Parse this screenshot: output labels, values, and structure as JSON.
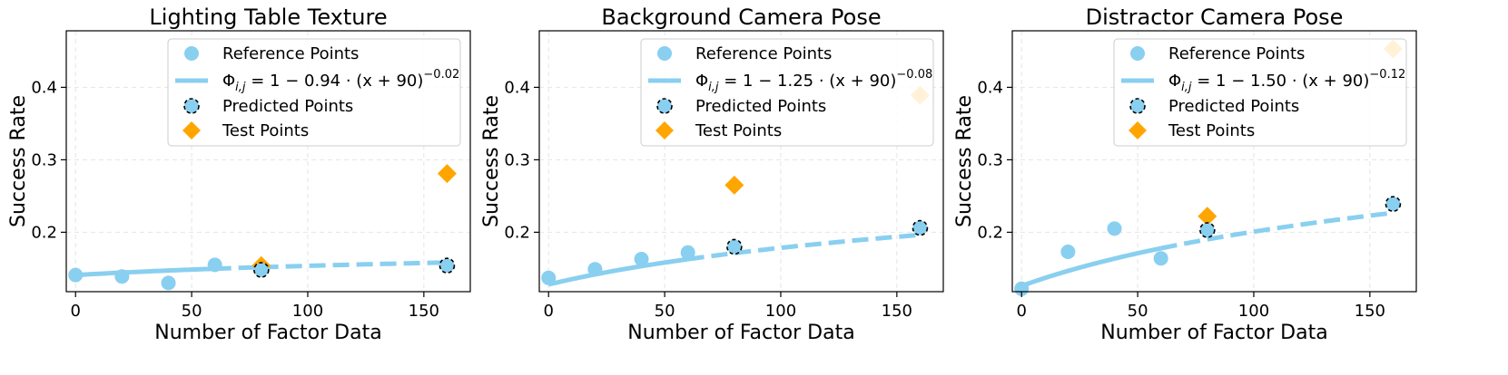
{
  "colors": {
    "reference": "#89cff0",
    "curve": "#89cff0",
    "predicted_edge": "#000000",
    "test": "#ffa500"
  },
  "legend": {
    "reference": "Reference Points",
    "predicted": "Predicted Points",
    "test": "Test Points"
  },
  "chart_data": [
    {
      "type": "scatter",
      "title": "Lighting Table Texture",
      "xlabel": "Number of Factor Data",
      "ylabel": "Success Rate",
      "xlim": [
        -4,
        170
      ],
      "ylim": [
        0.118,
        0.478
      ],
      "xticks": [
        0,
        50,
        100,
        150
      ],
      "yticks": [
        0.2,
        0.3,
        0.4
      ],
      "grid": true,
      "legend_position": "top",
      "fit": {
        "a": 0.94,
        "b": -0.02,
        "shift": 90,
        "label_prefix": "Φ",
        "label_sub": "i,j",
        "label_mid": " = 1 − 0.94 · (x + 90)",
        "label_exp": "−0.02"
      },
      "fit_solid_range": [
        0,
        60
      ],
      "fit_dashed_range": [
        60,
        160
      ],
      "reference_points": {
        "x": [
          0,
          20,
          40,
          60
        ],
        "y": [
          0.141,
          0.139,
          0.13,
          0.155
        ]
      },
      "predicted_points": {
        "x": [
          80,
          160
        ],
        "y": [
          0.148,
          0.154
        ]
      },
      "test_points": {
        "x": [
          80,
          160
        ],
        "y": [
          0.154,
          0.281
        ]
      }
    },
    {
      "type": "scatter",
      "title": "Background Camera Pose",
      "xlabel": "Number of Factor Data",
      "ylabel": "Success Rate",
      "xlim": [
        -4,
        170
      ],
      "ylim": [
        0.118,
        0.478
      ],
      "xticks": [
        0,
        50,
        100,
        150
      ],
      "yticks": [
        0.2,
        0.3,
        0.4
      ],
      "grid": true,
      "legend_position": "top",
      "fit": {
        "a": 1.25,
        "b": -0.08,
        "shift": 90,
        "label_prefix": "Φ",
        "label_sub": "i,j",
        "label_mid": " = 1 − 1.25 · (x + 90)",
        "label_exp": "−0.08"
      },
      "fit_solid_range": [
        0,
        60
      ],
      "fit_dashed_range": [
        60,
        160
      ],
      "reference_points": {
        "x": [
          0,
          20,
          40,
          60
        ],
        "y": [
          0.137,
          0.149,
          0.163,
          0.172
        ]
      },
      "predicted_points": {
        "x": [
          80,
          160
        ],
        "y": [
          0.18,
          0.206
        ]
      },
      "test_points": {
        "x": [
          80,
          160
        ],
        "y": [
          0.265,
          0.389
        ]
      }
    },
    {
      "type": "scatter",
      "title": "Distractor Camera Pose",
      "xlabel": "Number of Factor Data",
      "ylabel": "Success Rate",
      "xlim": [
        -4,
        170
      ],
      "ylim": [
        0.118,
        0.478
      ],
      "xticks": [
        0,
        50,
        100,
        150
      ],
      "yticks": [
        0.2,
        0.3,
        0.4
      ],
      "grid": true,
      "legend_position": "top",
      "fit": {
        "a": 1.5,
        "b": -0.12,
        "shift": 90,
        "label_prefix": "Φ",
        "label_sub": "i,j",
        "label_mid": " = 1 − 1.50 · (x + 90)",
        "label_exp": "−0.12"
      },
      "fit_solid_range": [
        0,
        60
      ],
      "fit_dashed_range": [
        60,
        160
      ],
      "reference_points": {
        "x": [
          0,
          20,
          40,
          60
        ],
        "y": [
          0.122,
          0.173,
          0.205,
          0.164
        ]
      },
      "predicted_points": {
        "x": [
          80,
          160
        ],
        "y": [
          0.203,
          0.239
        ]
      },
      "test_points": {
        "x": [
          80,
          160
        ],
        "y": [
          0.222,
          0.453
        ]
      }
    }
  ]
}
